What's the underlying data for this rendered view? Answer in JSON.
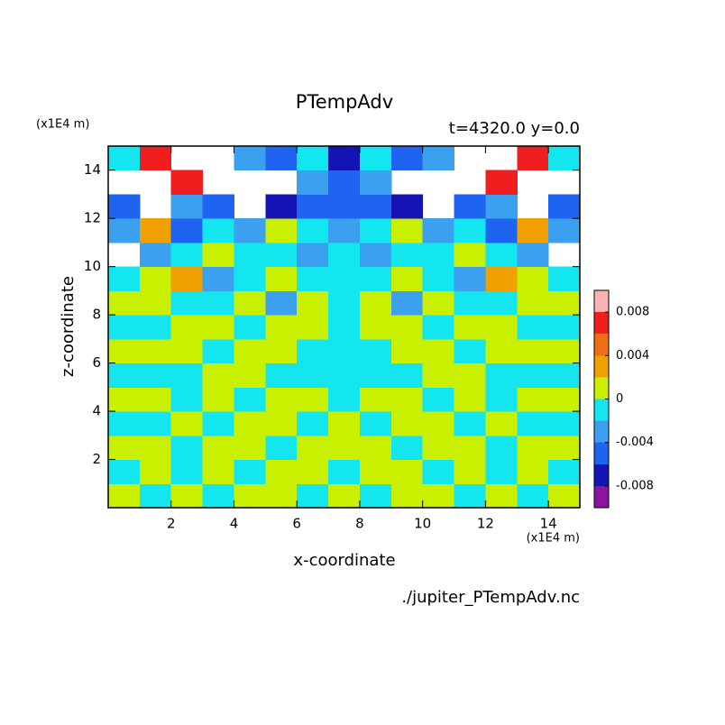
{
  "chart_data": {
    "type": "contour",
    "title": "PTempAdv",
    "subtitle": "t=4320.0 y=0.0",
    "xlabel": "x-coordinate",
    "ylabel": "z-coordinate",
    "xunit": "(x1E4 m)",
    "yunit": "(x1E4 m)",
    "source": "./jupiter_PTempAdv.nc",
    "xlim": [
      0,
      15
    ],
    "ylim": [
      0,
      15
    ],
    "xticks": [
      2,
      4,
      6,
      8,
      10,
      12,
      14
    ],
    "yticks": [
      2,
      4,
      6,
      8,
      10,
      12,
      14
    ],
    "x": [
      0.5,
      1.5,
      2.5,
      3.5,
      4.5,
      5.5,
      6.5,
      7.5,
      8.5,
      9.5,
      10.5,
      11.5,
      12.5,
      13.5,
      14.5
    ],
    "y": [
      0.5,
      1.5,
      2.5,
      3.5,
      4.5,
      5.5,
      6.5,
      7.5,
      8.5,
      9.5,
      10.5,
      11.5,
      12.5,
      13.5,
      14.5
    ],
    "z": [
      [
        0.001,
        -0.001,
        0.001,
        -0.001,
        0.001,
        0.001,
        -0.001,
        0.001,
        -0.001,
        0.001,
        0.001,
        -0.001,
        0.001,
        -0.001,
        0.001
      ],
      [
        -0.001,
        0.001,
        -0.001,
        0.001,
        -0.001,
        0.001,
        0.001,
        -0.001,
        0.001,
        0.001,
        -0.001,
        0.001,
        -0.001,
        0.001,
        -0.001
      ],
      [
        0.001,
        0.001,
        -0.001,
        0.001,
        0.001,
        -0.001,
        0.001,
        0.001,
        0.001,
        -0.001,
        0.001,
        0.001,
        -0.001,
        0.001,
        0.001
      ],
      [
        -0.001,
        -0.001,
        0.001,
        -0.001,
        0.001,
        0.001,
        -0.001,
        0.001,
        -0.001,
        0.001,
        0.001,
        -0.001,
        0.001,
        -0.001,
        -0.001
      ],
      [
        0.001,
        0.001,
        -0.001,
        0.001,
        -0.001,
        0.001,
        0.001,
        -0.001,
        0.001,
        0.001,
        -0.001,
        0.001,
        -0.001,
        0.001,
        0.001
      ],
      [
        -0.001,
        -0.001,
        -0.001,
        0.001,
        0.001,
        -0.001,
        -0.001,
        -0.001,
        -0.001,
        -0.001,
        0.001,
        0.001,
        -0.001,
        -0.001,
        -0.001
      ],
      [
        0.001,
        0.001,
        0.001,
        -0.001,
        0.001,
        0.001,
        -0.001,
        -0.001,
        -0.001,
        0.001,
        0.001,
        -0.001,
        0.001,
        0.001,
        0.001
      ],
      [
        -0.001,
        -0.001,
        0.001,
        0.001,
        -0.001,
        0.001,
        0.001,
        -0.001,
        0.001,
        0.001,
        -0.001,
        0.001,
        0.001,
        -0.001,
        -0.001
      ],
      [
        0.001,
        0.001,
        -0.001,
        -0.001,
        0.001,
        -0.003,
        0.001,
        -0.001,
        0.001,
        -0.003,
        0.001,
        -0.001,
        -0.001,
        0.001,
        0.001
      ],
      [
        -0.001,
        0.001,
        0.003,
        -0.003,
        -0.001,
        0.001,
        -0.001,
        -0.001,
        -0.001,
        0.001,
        -0.001,
        -0.003,
        0.003,
        0.001,
        -0.001
      ],
      [
        null,
        -0.003,
        -0.001,
        0.001,
        -0.001,
        -0.001,
        -0.003,
        -0.001,
        -0.003,
        -0.001,
        -0.001,
        0.001,
        -0.001,
        -0.003,
        null
      ],
      [
        -0.003,
        0.003,
        -0.005,
        -0.001,
        -0.003,
        0.001,
        -0.001,
        -0.003,
        -0.001,
        0.001,
        -0.003,
        -0.001,
        -0.005,
        0.003,
        -0.003
      ],
      [
        -0.005,
        null,
        -0.003,
        -0.005,
        null,
        -0.007,
        -0.005,
        -0.005,
        -0.005,
        -0.007,
        null,
        -0.005,
        -0.003,
        null,
        -0.005
      ],
      [
        null,
        null,
        0.007,
        null,
        null,
        null,
        -0.003,
        -0.005,
        -0.003,
        null,
        null,
        null,
        0.007,
        null,
        null
      ],
      [
        -0.001,
        0.007,
        null,
        null,
        -0.003,
        -0.005,
        -0.001,
        -0.007,
        -0.001,
        -0.005,
        -0.003,
        null,
        null,
        0.007,
        -0.001
      ]
    ],
    "levels": [
      -0.008,
      -0.006,
      -0.004,
      -0.002,
      0,
      0.002,
      0.004,
      0.006,
      0.008
    ],
    "colors": [
      "#8a14a0",
      "#1414b4",
      "#1e64f0",
      "#3ca0f0",
      "#14e6f0",
      "#c8f000",
      "#f0a000",
      "#f06e14",
      "#f01e1e",
      "#f8b4b4"
    ],
    "clim": [
      -0.01,
      0.01
    ],
    "cticks": [
      -0.008,
      -0.004,
      0,
      0.004,
      0.008
    ]
  }
}
